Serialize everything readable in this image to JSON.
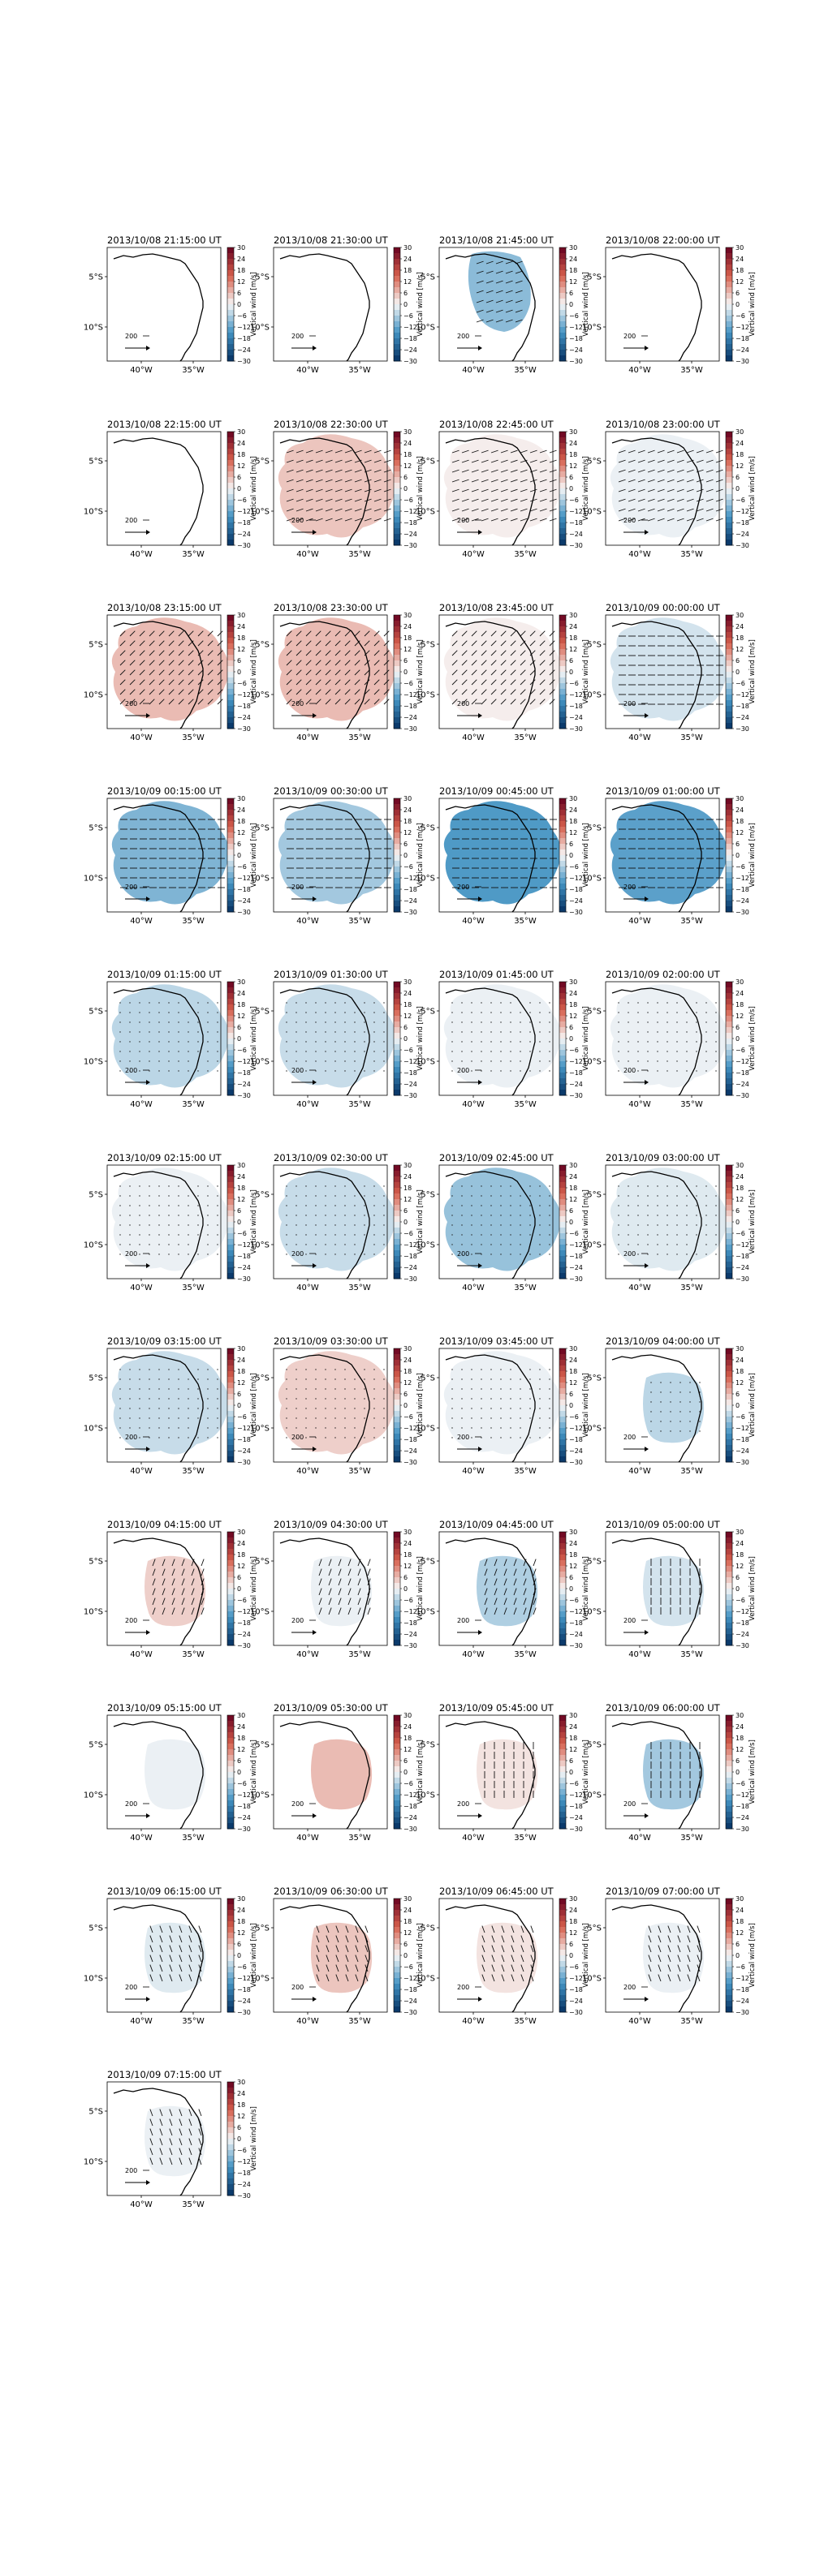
{
  "chart_data": {
    "type": "heatmap",
    "description_units": "Vertical wind [m/s]",
    "colorbar": {
      "label": "Vertical wind [m/s]",
      "ticks": [
        "30",
        "24",
        "18",
        "12",
        "6",
        "0",
        "−6",
        "−12",
        "−18",
        "−24",
        "−30"
      ],
      "range": [
        -30,
        30
      ],
      "colormap": "RdBu_r"
    },
    "map": {
      "y_ticks": [
        "5°S",
        "10°S"
      ],
      "x_ticks": [
        "40°W",
        "35°W"
      ],
      "scale_label": "200",
      "quiver_key_label": "200"
    },
    "colors": {
      "line": "#000000",
      "frame": "#000000"
    },
    "panels": [
      {
        "title": "2013/10/08 21:15:00 UT",
        "w": 0,
        "coverage": "none",
        "arrows": "none"
      },
      {
        "title": "2013/10/08 21:30:00 UT",
        "w": 0,
        "coverage": "none",
        "arrows": "none"
      },
      {
        "title": "2013/10/08 21:45:00 UT",
        "w": -9,
        "coverage": "small",
        "arrows": "ene"
      },
      {
        "title": "2013/10/08 22:00:00 UT",
        "w": 0,
        "coverage": "none",
        "arrows": "none"
      },
      {
        "title": "2013/10/08 22:15:00 UT",
        "w": 0,
        "coverage": "none",
        "arrows": "none"
      },
      {
        "title": "2013/10/08 22:30:00 UT",
        "w": 5,
        "coverage": "large",
        "arrows": "ene"
      },
      {
        "title": "2013/10/08 22:45:00 UT",
        "w": 1,
        "coverage": "large",
        "arrows": "ene"
      },
      {
        "title": "2013/10/08 23:00:00 UT",
        "w": -1,
        "coverage": "large",
        "arrows": "ene"
      },
      {
        "title": "2013/10/08 23:15:00 UT",
        "w": 6,
        "coverage": "large",
        "arrows": "ne"
      },
      {
        "title": "2013/10/08 23:30:00 UT",
        "w": 6,
        "coverage": "large",
        "arrows": "ne"
      },
      {
        "title": "2013/10/08 23:45:00 UT",
        "w": 1,
        "coverage": "large",
        "arrows": "ne"
      },
      {
        "title": "2013/10/09 00:00:00 UT",
        "w": -3,
        "coverage": "large",
        "arrows": "e"
      },
      {
        "title": "2013/10/09 00:15:00 UT",
        "w": -10,
        "coverage": "large",
        "arrows": "e"
      },
      {
        "title": "2013/10/09 00:30:00 UT",
        "w": -7,
        "coverage": "large",
        "arrows": "e"
      },
      {
        "title": "2013/10/09 00:45:00 UT",
        "w": -14,
        "coverage": "large",
        "arrows": "e"
      },
      {
        "title": "2013/10/09 01:00:00 UT",
        "w": -13,
        "coverage": "large",
        "arrows": "e"
      },
      {
        "title": "2013/10/09 01:15:00 UT",
        "w": -5,
        "coverage": "large",
        "arrows": "dot"
      },
      {
        "title": "2013/10/09 01:30:00 UT",
        "w": -4,
        "coverage": "large",
        "arrows": "dot"
      },
      {
        "title": "2013/10/09 01:45:00 UT",
        "w": -1,
        "coverage": "large",
        "arrows": "dot"
      },
      {
        "title": "2013/10/09 02:00:00 UT",
        "w": -1,
        "coverage": "large",
        "arrows": "dot"
      },
      {
        "title": "2013/10/09 02:15:00 UT",
        "w": -1,
        "coverage": "large",
        "arrows": "dot"
      },
      {
        "title": "2013/10/09 02:30:00 UT",
        "w": -4,
        "coverage": "large",
        "arrows": "dot"
      },
      {
        "title": "2013/10/09 02:45:00 UT",
        "w": -8,
        "coverage": "large",
        "arrows": "dot"
      },
      {
        "title": "2013/10/09 03:00:00 UT",
        "w": -2,
        "coverage": "large",
        "arrows": "dot"
      },
      {
        "title": "2013/10/09 03:15:00 UT",
        "w": -4,
        "coverage": "large",
        "arrows": "dot"
      },
      {
        "title": "2013/10/09 03:30:00 UT",
        "w": 4,
        "coverage": "large",
        "arrows": "dot"
      },
      {
        "title": "2013/10/09 03:45:00 UT",
        "w": -1,
        "coverage": "large",
        "arrows": "dot"
      },
      {
        "title": "2013/10/09 04:00:00 UT",
        "w": -5,
        "coverage": "east",
        "arrows": "dot"
      },
      {
        "title": "2013/10/09 04:15:00 UT",
        "w": 4,
        "coverage": "east",
        "arrows": "nne"
      },
      {
        "title": "2013/10/09 04:30:00 UT",
        "w": -1,
        "coverage": "east",
        "arrows": "nne"
      },
      {
        "title": "2013/10/09 04:45:00 UT",
        "w": -6,
        "coverage": "east",
        "arrows": "nne"
      },
      {
        "title": "2013/10/09 05:00:00 UT",
        "w": -3,
        "coverage": "east",
        "arrows": "n"
      },
      {
        "title": "2013/10/09 05:15:00 UT",
        "w": -1,
        "coverage": "east",
        "arrows": "none"
      },
      {
        "title": "2013/10/09 05:30:00 UT",
        "w": 6,
        "coverage": "east",
        "arrows": "none"
      },
      {
        "title": "2013/10/09 05:45:00 UT",
        "w": 2,
        "coverage": "east",
        "arrows": "n"
      },
      {
        "title": "2013/10/09 06:00:00 UT",
        "w": -7,
        "coverage": "east",
        "arrows": "n"
      },
      {
        "title": "2013/10/09 06:15:00 UT",
        "w": -2,
        "coverage": "east",
        "arrows": "nnw"
      },
      {
        "title": "2013/10/09 06:30:00 UT",
        "w": 5,
        "coverage": "east",
        "arrows": "nnw"
      },
      {
        "title": "2013/10/09 06:45:00 UT",
        "w": 2,
        "coverage": "east",
        "arrows": "nnw"
      },
      {
        "title": "2013/10/09 07:00:00 UT",
        "w": -1,
        "coverage": "east",
        "arrows": "nnw"
      },
      {
        "title": "2013/10/09 07:15:00 UT",
        "w": -1,
        "coverage": "east",
        "arrows": "nnw"
      }
    ]
  }
}
